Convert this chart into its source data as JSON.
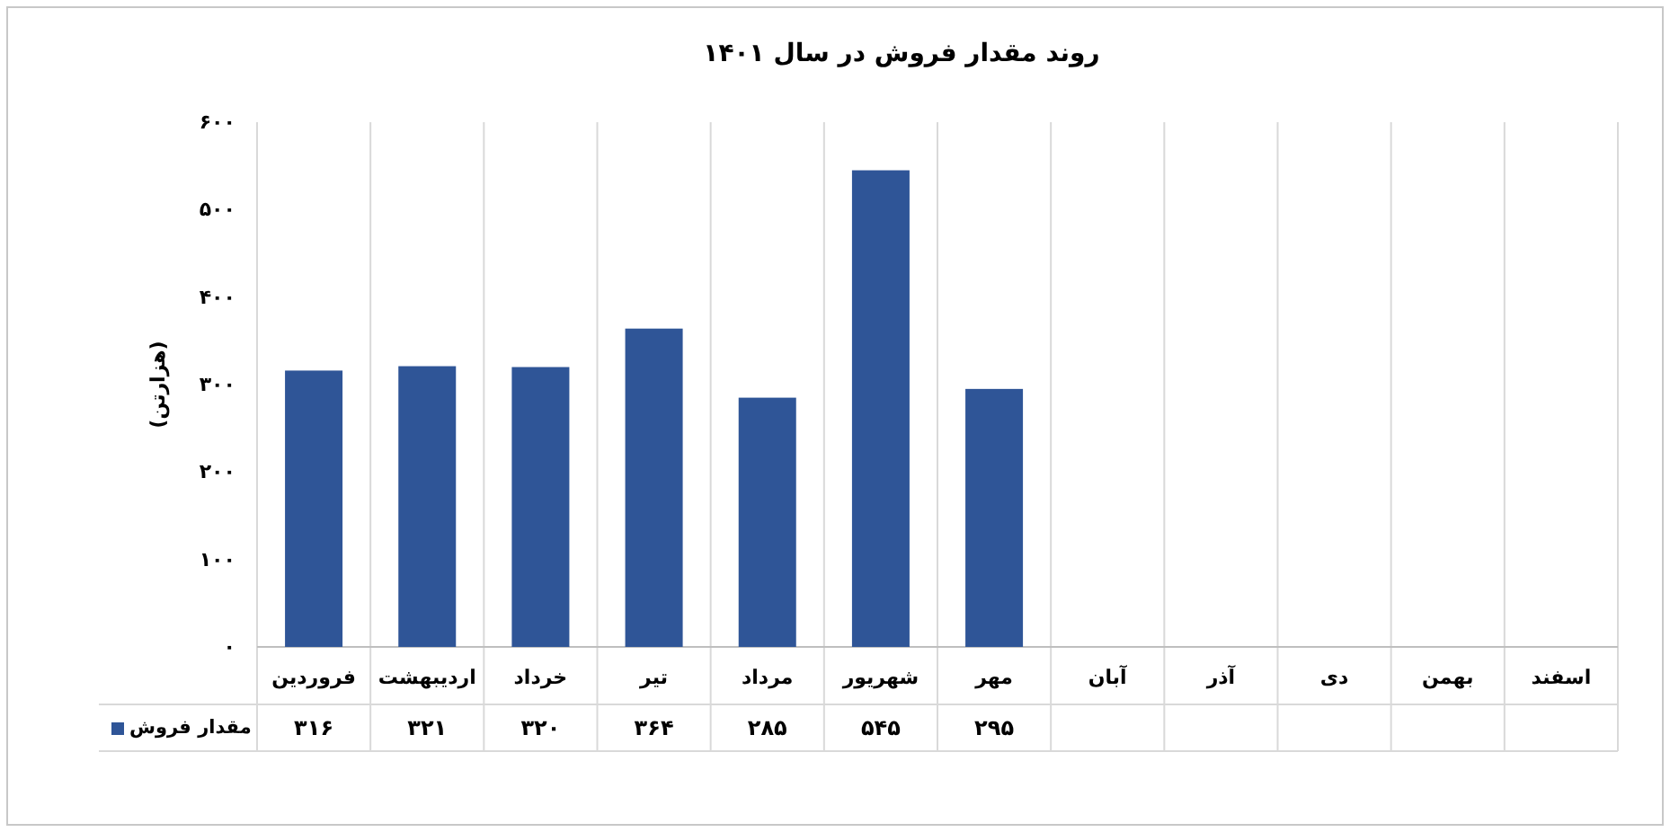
{
  "chart_data": {
    "type": "bar",
    "title": "روند مقدار فروش در سال ۱۴۰۱",
    "ylabel": "(هزارتن)",
    "categories": [
      "فروردین",
      "اردیبهشت",
      "خرداد",
      "تیر",
      "مرداد",
      "شهریور",
      "مهر",
      "آبان",
      "آذر",
      "دی",
      "بهمن",
      "اسفند"
    ],
    "series": [
      {
        "name": "مقدار فروش",
        "color": "#2f5597",
        "values": [
          316,
          321,
          320,
          364,
          285,
          545,
          295,
          null,
          null,
          null,
          null,
          null
        ],
        "value_labels": [
          "۳۱۶",
          "۳۲۱",
          "۳۲۰",
          "۳۶۴",
          "۲۸۵",
          "۵۴۵",
          "۲۹۵",
          null,
          null,
          null,
          null,
          null
        ]
      }
    ],
    "ylim": [
      0,
      600
    ],
    "yticks": [
      {
        "value": 0,
        "label": "۰"
      },
      {
        "value": 100,
        "label": "۱۰۰"
      },
      {
        "value": 200,
        "label": "۲۰۰"
      },
      {
        "value": 300,
        "label": "۳۰۰"
      },
      {
        "value": 400,
        "label": "۴۰۰"
      },
      {
        "value": 500,
        "label": "۵۰۰"
      },
      {
        "value": 600,
        "label": "۶۰۰"
      }
    ],
    "legend": "bottom left"
  }
}
